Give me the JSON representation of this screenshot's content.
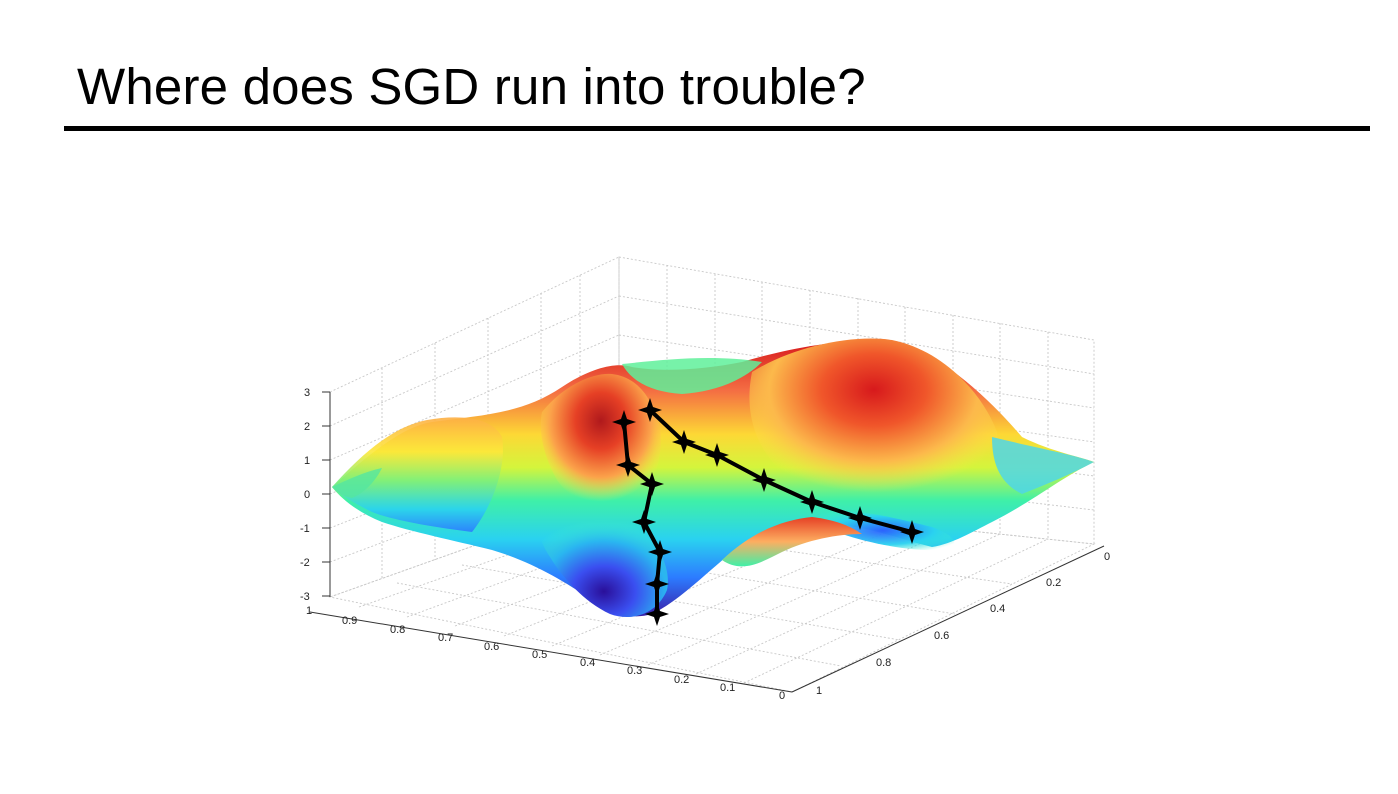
{
  "slide": {
    "title": "Where does SGD run into trouble?"
  },
  "figure": {
    "z_ticks": [
      "3",
      "2",
      "1",
      "0",
      "-1",
      "-2",
      "-3"
    ],
    "x_ticks": [
      "1",
      "0.9",
      "0.8",
      "0.7",
      "0.6",
      "0.5",
      "0.4",
      "0.3",
      "0.2",
      "0.1",
      "0"
    ],
    "y_ticks": [
      "0",
      "0.2",
      "0.4",
      "0.6",
      "0.8",
      "1"
    ],
    "colors": {
      "high": "#d7191c",
      "mid_high": "#fdae61",
      "mid": "#ffff3f",
      "mid_low": "#3ff0a8",
      "low": "#2c7bff",
      "valley": "#3a1fa8",
      "path": "#000000"
    }
  }
}
